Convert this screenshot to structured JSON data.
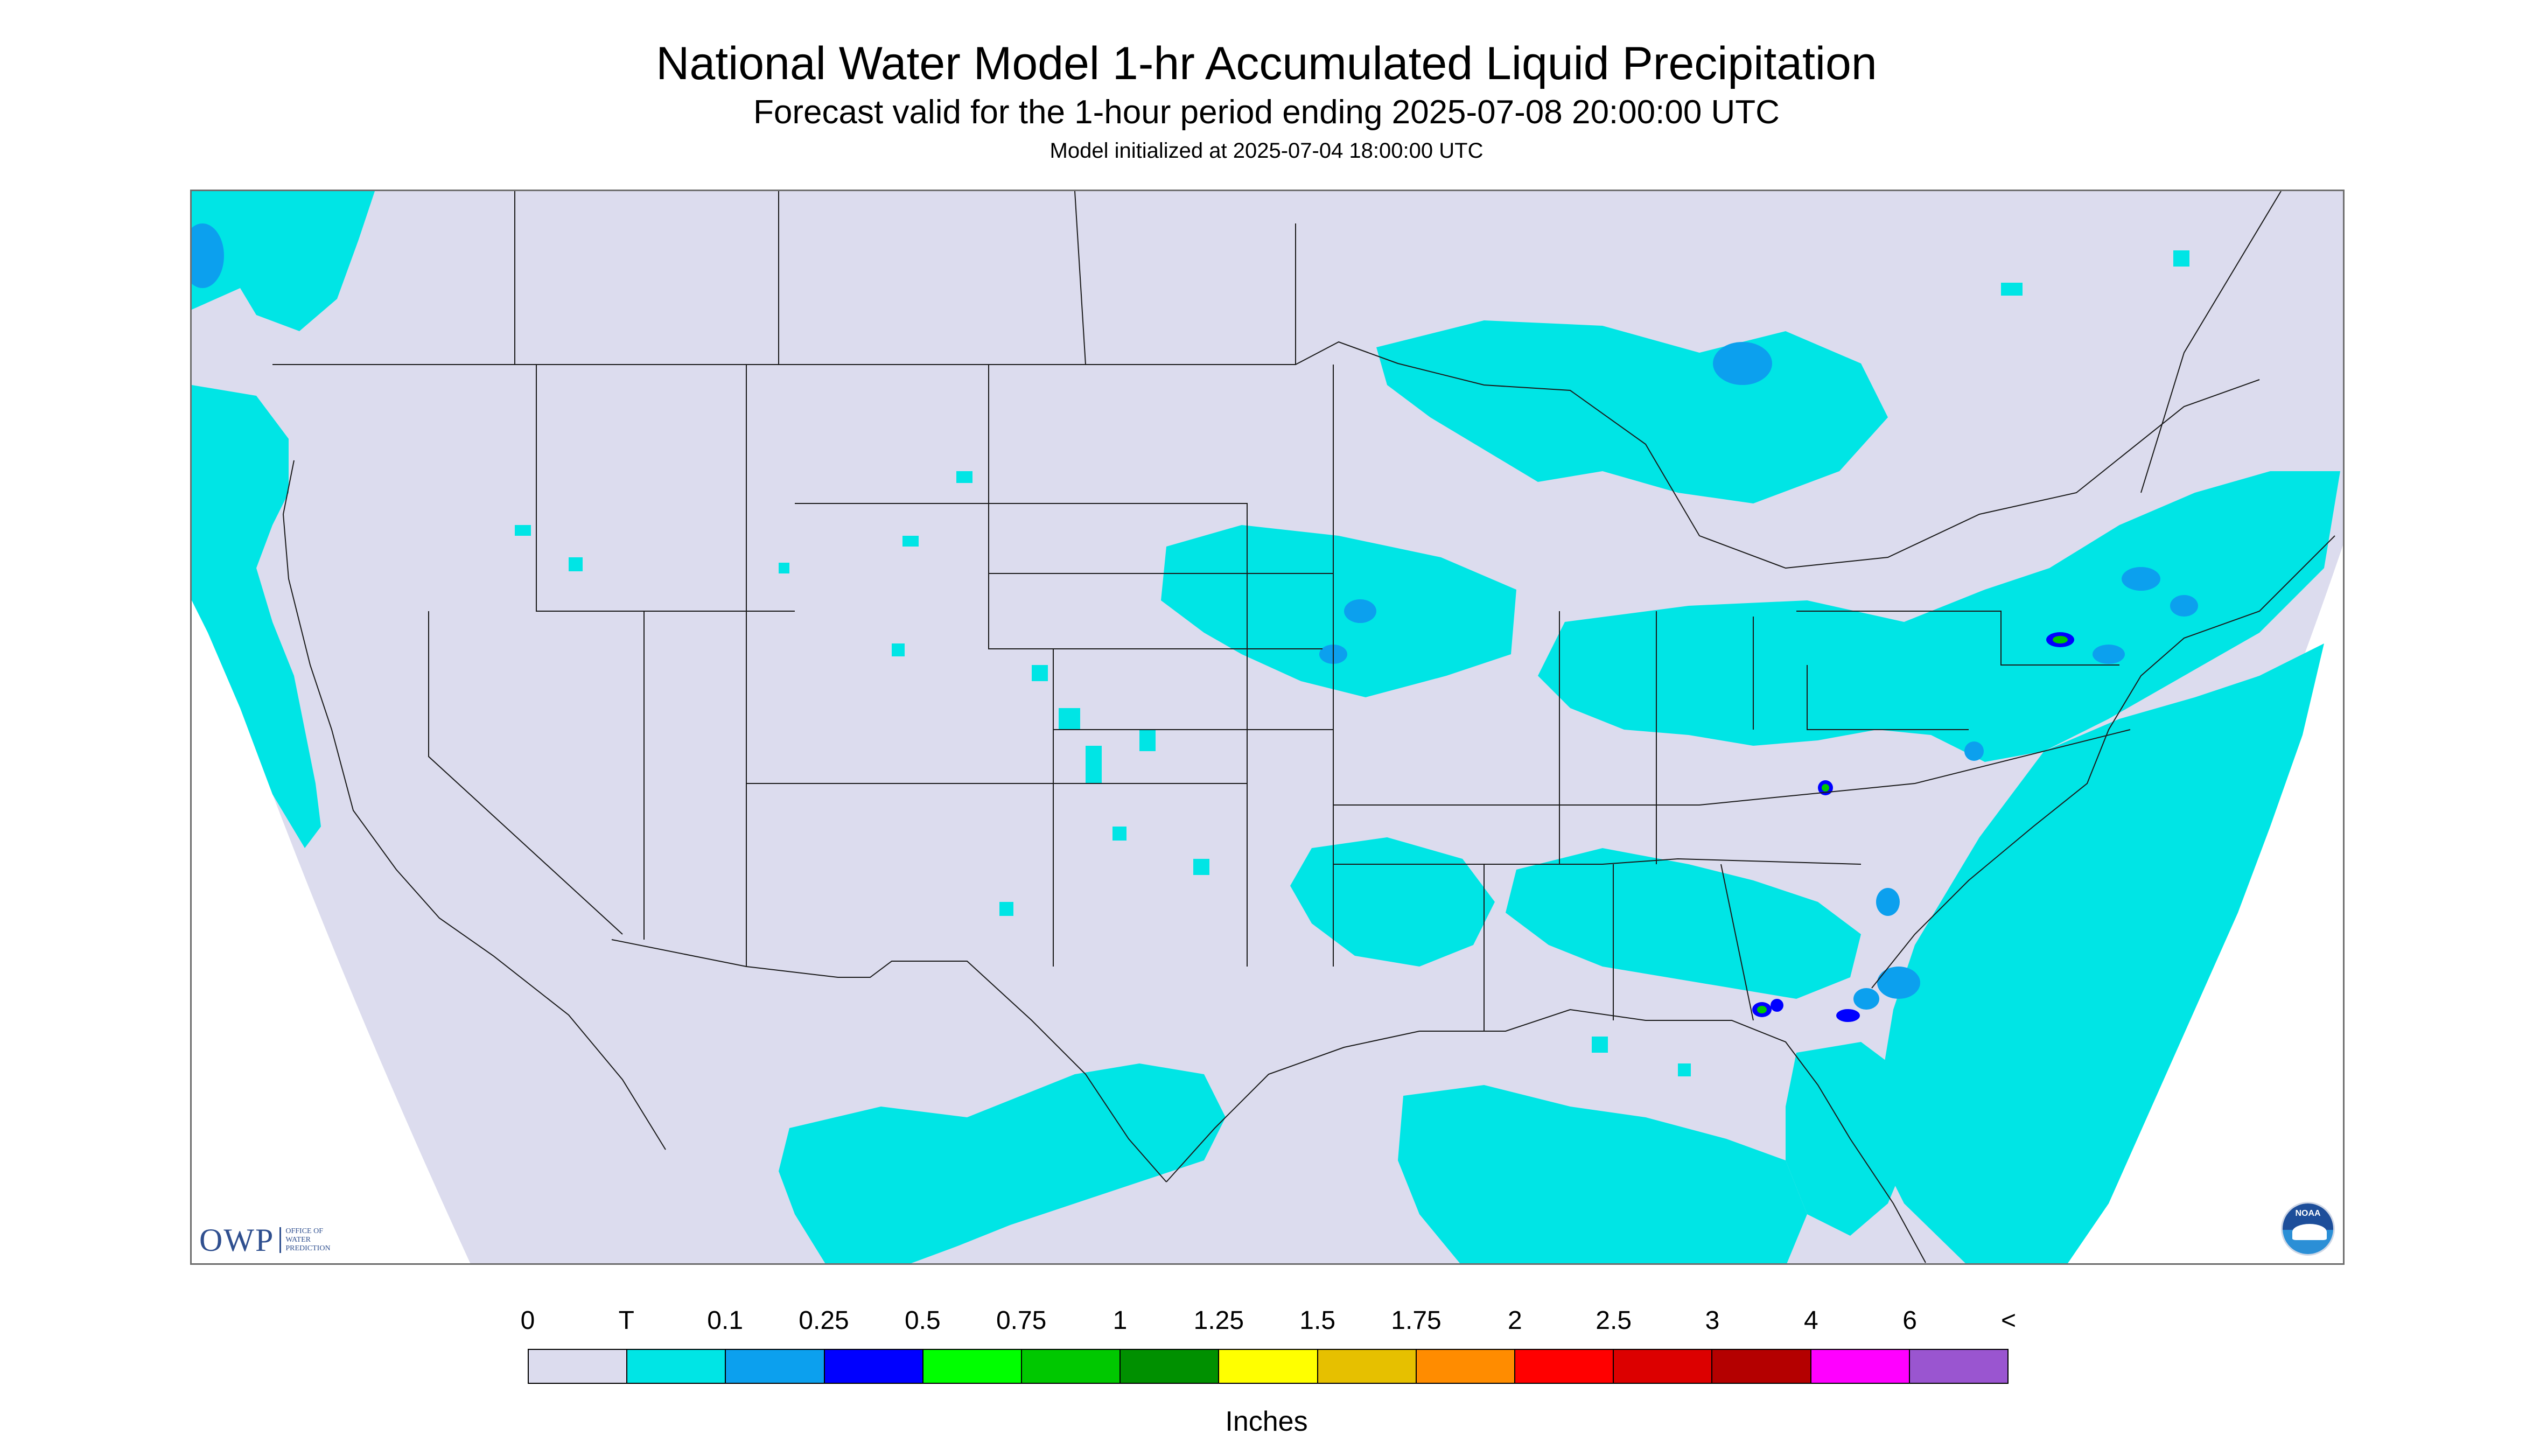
{
  "header": {
    "title": "National Water Model 1-hr Accumulated Liquid Precipitation",
    "subtitle": "Forecast valid for the 1-hour period ending 2025-07-08 20:00:00 UTC",
    "init": "Model initialized at 2025-07-04 18:00:00 UTC"
  },
  "logos": {
    "owp_mark": "OWP",
    "owp_text": "OFFICE OF WATER PREDICTION",
    "noaa_text": "NOAA"
  },
  "legend": {
    "units": "Inches",
    "labels": [
      "0",
      "T",
      "0.1",
      "0.25",
      "0.5",
      "0.75",
      "1",
      "1.25",
      "1.5",
      "1.75",
      "2",
      "2.5",
      "3",
      "4",
      "6",
      "<"
    ],
    "colors": [
      "#dcdcee",
      "#00e5e5",
      "#0ca0ee",
      "#0000ff",
      "#00ff00",
      "#00c800",
      "#009000",
      "#ffff00",
      "#e6c000",
      "#ff8c00",
      "#ff0000",
      "#dc0000",
      "#b40000",
      "#ff00ff",
      "#9a55d0"
    ]
  },
  "map": {
    "colors": {
      "background": "#dcdcee",
      "trace": "#00e5e5",
      "light": "#0ca0ee",
      "moderate": "#0000ff",
      "heavy": "#00c800",
      "border": "#1a1a1a"
    }
  }
}
